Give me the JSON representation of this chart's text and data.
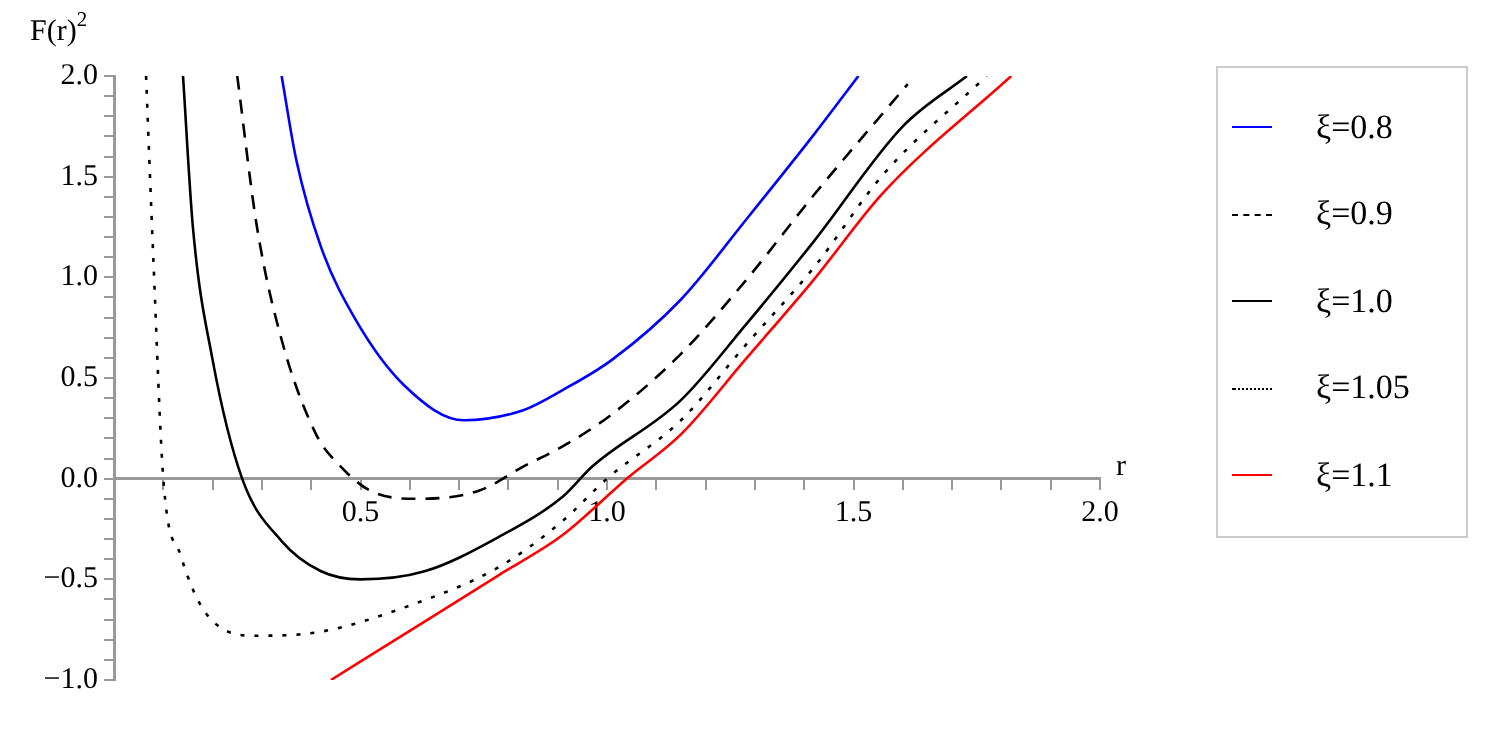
{
  "chart_data": {
    "type": "line",
    "xlabel": "r",
    "ylabel": "F(r)$^{2}$",
    "xlim": [
      0,
      2.0
    ],
    "ylim": [
      -1.0,
      2.0
    ],
    "xticks": [
      {
        "value": 0,
        "label": null
      },
      {
        "value": 0.1,
        "label": null
      },
      {
        "value": 0.2,
        "label": null
      },
      {
        "value": 0.3,
        "label": null
      },
      {
        "value": 0.4,
        "label": null
      },
      {
        "value": 0.5,
        "label": "0.5"
      },
      {
        "value": 0.6,
        "label": null
      },
      {
        "value": 0.7,
        "label": null
      },
      {
        "value": 0.8,
        "label": null
      },
      {
        "value": 0.9,
        "label": null
      },
      {
        "value": 1.0,
        "label": "1.0"
      },
      {
        "value": 1.1,
        "label": null
      },
      {
        "value": 1.2,
        "label": null
      },
      {
        "value": 1.3,
        "label": null
      },
      {
        "value": 1.4,
        "label": null
      },
      {
        "value": 1.5,
        "label": "1.5"
      },
      {
        "value": 1.6,
        "label": null
      },
      {
        "value": 1.7,
        "label": null
      },
      {
        "value": 1.8,
        "label": null
      },
      {
        "value": 1.9,
        "label": null
      },
      {
        "value": 2.0,
        "label": "2.0"
      }
    ],
    "yticks": [
      {
        "value": -1.0,
        "label": "−1.0"
      },
      {
        "value": -0.9,
        "label": null
      },
      {
        "value": -0.8,
        "label": null
      },
      {
        "value": -0.7,
        "label": null
      },
      {
        "value": -0.6,
        "label": null
      },
      {
        "value": -0.5,
        "label": "−0.5"
      },
      {
        "value": -0.4,
        "label": null
      },
      {
        "value": -0.3,
        "label": null
      },
      {
        "value": -0.2,
        "label": null
      },
      {
        "value": -0.1,
        "label": null
      },
      {
        "value": 0,
        "label": "0.0"
      },
      {
        "value": 0.1,
        "label": null
      },
      {
        "value": 0.2,
        "label": null
      },
      {
        "value": 0.3,
        "label": null
      },
      {
        "value": 0.4,
        "label": null
      },
      {
        "value": 0.5,
        "label": "0.5"
      },
      {
        "value": 0.6,
        "label": null
      },
      {
        "value": 0.7,
        "label": null
      },
      {
        "value": 0.8,
        "label": null
      },
      {
        "value": 0.9,
        "label": null
      },
      {
        "value": 1.0,
        "label": "1.0"
      },
      {
        "value": 1.1,
        "label": null
      },
      {
        "value": 1.2,
        "label": null
      },
      {
        "value": 1.3,
        "label": null
      },
      {
        "value": 1.4,
        "label": null
      },
      {
        "value": 1.5,
        "label": "1.5"
      },
      {
        "value": 1.6,
        "label": null
      },
      {
        "value": 1.7,
        "label": null
      },
      {
        "value": 1.8,
        "label": null
      },
      {
        "value": 1.9,
        "label": null
      },
      {
        "value": 2.0,
        "label": "2.0"
      }
    ],
    "grid": false,
    "legend": "right",
    "marker": "none",
    "series": [
      {
        "name": "ξ=0.8",
        "color": "#0000ff",
        "line_style": "solid",
        "x": [
          0.34,
          0.37,
          0.42,
          0.49,
          0.59,
          0.71,
          0.83,
          0.91,
          1.01,
          1.15,
          1.28,
          1.42,
          1.51
        ],
        "values": [
          2.0,
          1.58,
          1.15,
          0.79,
          0.46,
          0.29,
          0.34,
          0.44,
          0.59,
          0.89,
          1.28,
          1.71,
          2.0
        ]
      },
      {
        "name": "ξ=0.9",
        "color": "#000000",
        "line_style": "dashed",
        "x": [
          0.25,
          0.29,
          0.34,
          0.41,
          0.46,
          0.52,
          0.61,
          0.74,
          0.83,
          0.91,
          1.01,
          1.15,
          1.28,
          1.42,
          1.61
        ],
        "values": [
          2.0,
          1.25,
          0.69,
          0.22,
          0.06,
          -0.06,
          -0.1,
          -0.06,
          0.06,
          0.16,
          0.32,
          0.62,
          0.98,
          1.41,
          1.96
        ]
      },
      {
        "name": "ξ=1.0",
        "color": "#000000",
        "line_style": "solid",
        "x": [
          0.14,
          0.16,
          0.2,
          0.26,
          0.34,
          0.42,
          0.5,
          0.63,
          0.78,
          0.91,
          0.97,
          1.15,
          1.28,
          1.42,
          1.6,
          1.73
        ],
        "values": [
          2.0,
          1.25,
          0.59,
          0.0,
          -0.31,
          -0.46,
          -0.5,
          -0.46,
          -0.29,
          -0.09,
          0.06,
          0.39,
          0.76,
          1.18,
          1.75,
          2.0
        ]
      },
      {
        "name": "ξ=1.05",
        "color": "#000000",
        "line_style": "dotted",
        "x": [
          0.065,
          0.08,
          0.1,
          0.135,
          0.19,
          0.29,
          0.42,
          0.6,
          0.78,
          0.91,
          1.0,
          1.15,
          1.28,
          1.42,
          1.56,
          1.77
        ],
        "values": [
          2.0,
          1.08,
          0.0,
          -0.38,
          -0.68,
          -0.78,
          -0.76,
          -0.63,
          -0.44,
          -0.21,
          0.0,
          0.29,
          0.66,
          1.05,
          1.51,
          2.0
        ]
      },
      {
        "name": "ξ=1.1",
        "color": "#ff0000",
        "line_style": "solid",
        "x": [
          0.44,
          0.63,
          0.78,
          0.91,
          1.04,
          1.15,
          1.28,
          1.42,
          1.56,
          1.82
        ],
        "values": [
          -1.0,
          -0.71,
          -0.48,
          -0.28,
          0.0,
          0.22,
          0.59,
          0.99,
          1.42,
          2.0
        ]
      }
    ]
  }
}
